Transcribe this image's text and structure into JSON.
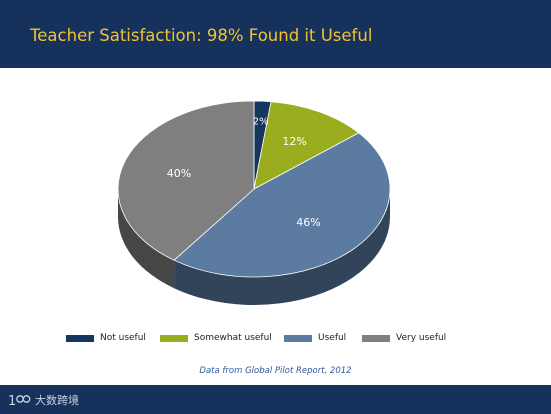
{
  "header": {
    "title": "Teacher Satisfaction: 98% Found it Useful"
  },
  "chart_data": {
    "type": "pie",
    "title": "Teacher Satisfaction: 98% Found it Useful",
    "categories": [
      "Not useful",
      "Somewhat useful",
      "Useful",
      "Very useful"
    ],
    "values": [
      2,
      12,
      46,
      40
    ],
    "labels": [
      "2%",
      "12%",
      "46%",
      "40%"
    ],
    "colors": [
      "#16365e",
      "#9aad1f",
      "#5b7ba1",
      "#7f7f7f"
    ],
    "style": "3d",
    "legend_position": "bottom"
  },
  "source": "Data from Global Pilot Report, 2012",
  "footer": {
    "logo_text": "大数跨境"
  }
}
